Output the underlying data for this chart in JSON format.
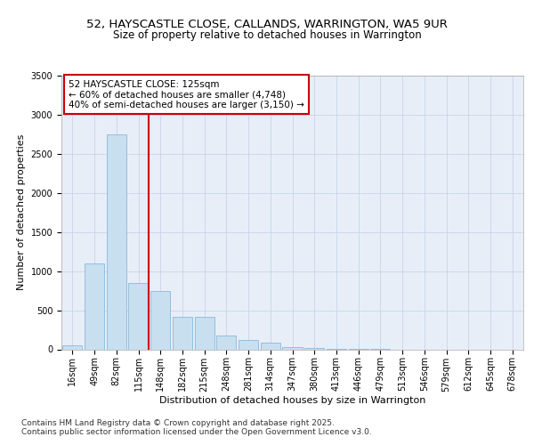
{
  "title_line1": "52, HAYSCASTLE CLOSE, CALLANDS, WARRINGTON, WA5 9UR",
  "title_line2": "Size of property relative to detached houses in Warrington",
  "xlabel": "Distribution of detached houses by size in Warrington",
  "ylabel": "Number of detached properties",
  "categories": [
    "16sqm",
    "49sqm",
    "82sqm",
    "115sqm",
    "148sqm",
    "182sqm",
    "215sqm",
    "248sqm",
    "281sqm",
    "314sqm",
    "347sqm",
    "380sqm",
    "413sqm",
    "446sqm",
    "479sqm",
    "513sqm",
    "546sqm",
    "579sqm",
    "612sqm",
    "645sqm",
    "678sqm"
  ],
  "values": [
    50,
    1100,
    2750,
    850,
    750,
    420,
    420,
    175,
    125,
    80,
    30,
    15,
    5,
    2,
    1,
    0,
    0,
    0,
    0,
    0,
    0
  ],
  "bar_color": "#c8dff0",
  "bar_edge_color": "#7bafd4",
  "property_size_idx": 3,
  "property_size_label": "52 HAYSCASTLE CLOSE: 125sqm",
  "annotation_line2": "← 60% of detached houses are smaller (4,748)",
  "annotation_line3": "40% of semi-detached houses are larger (3,150) →",
  "vline_color": "#cc0000",
  "annotation_edge_color": "#cc0000",
  "ylim": [
    0,
    3500
  ],
  "yticks": [
    0,
    500,
    1000,
    1500,
    2000,
    2500,
    3000,
    3500
  ],
  "grid_color": "#c8d4e8",
  "background_color": "#e8eef8",
  "footer_line1": "Contains HM Land Registry data © Crown copyright and database right 2025.",
  "footer_line2": "Contains public sector information licensed under the Open Government Licence v3.0.",
  "title_fontsize": 9.5,
  "subtitle_fontsize": 8.5,
  "axis_label_fontsize": 8,
  "tick_fontsize": 7,
  "annotation_fontsize": 7.5,
  "footer_fontsize": 6.5
}
